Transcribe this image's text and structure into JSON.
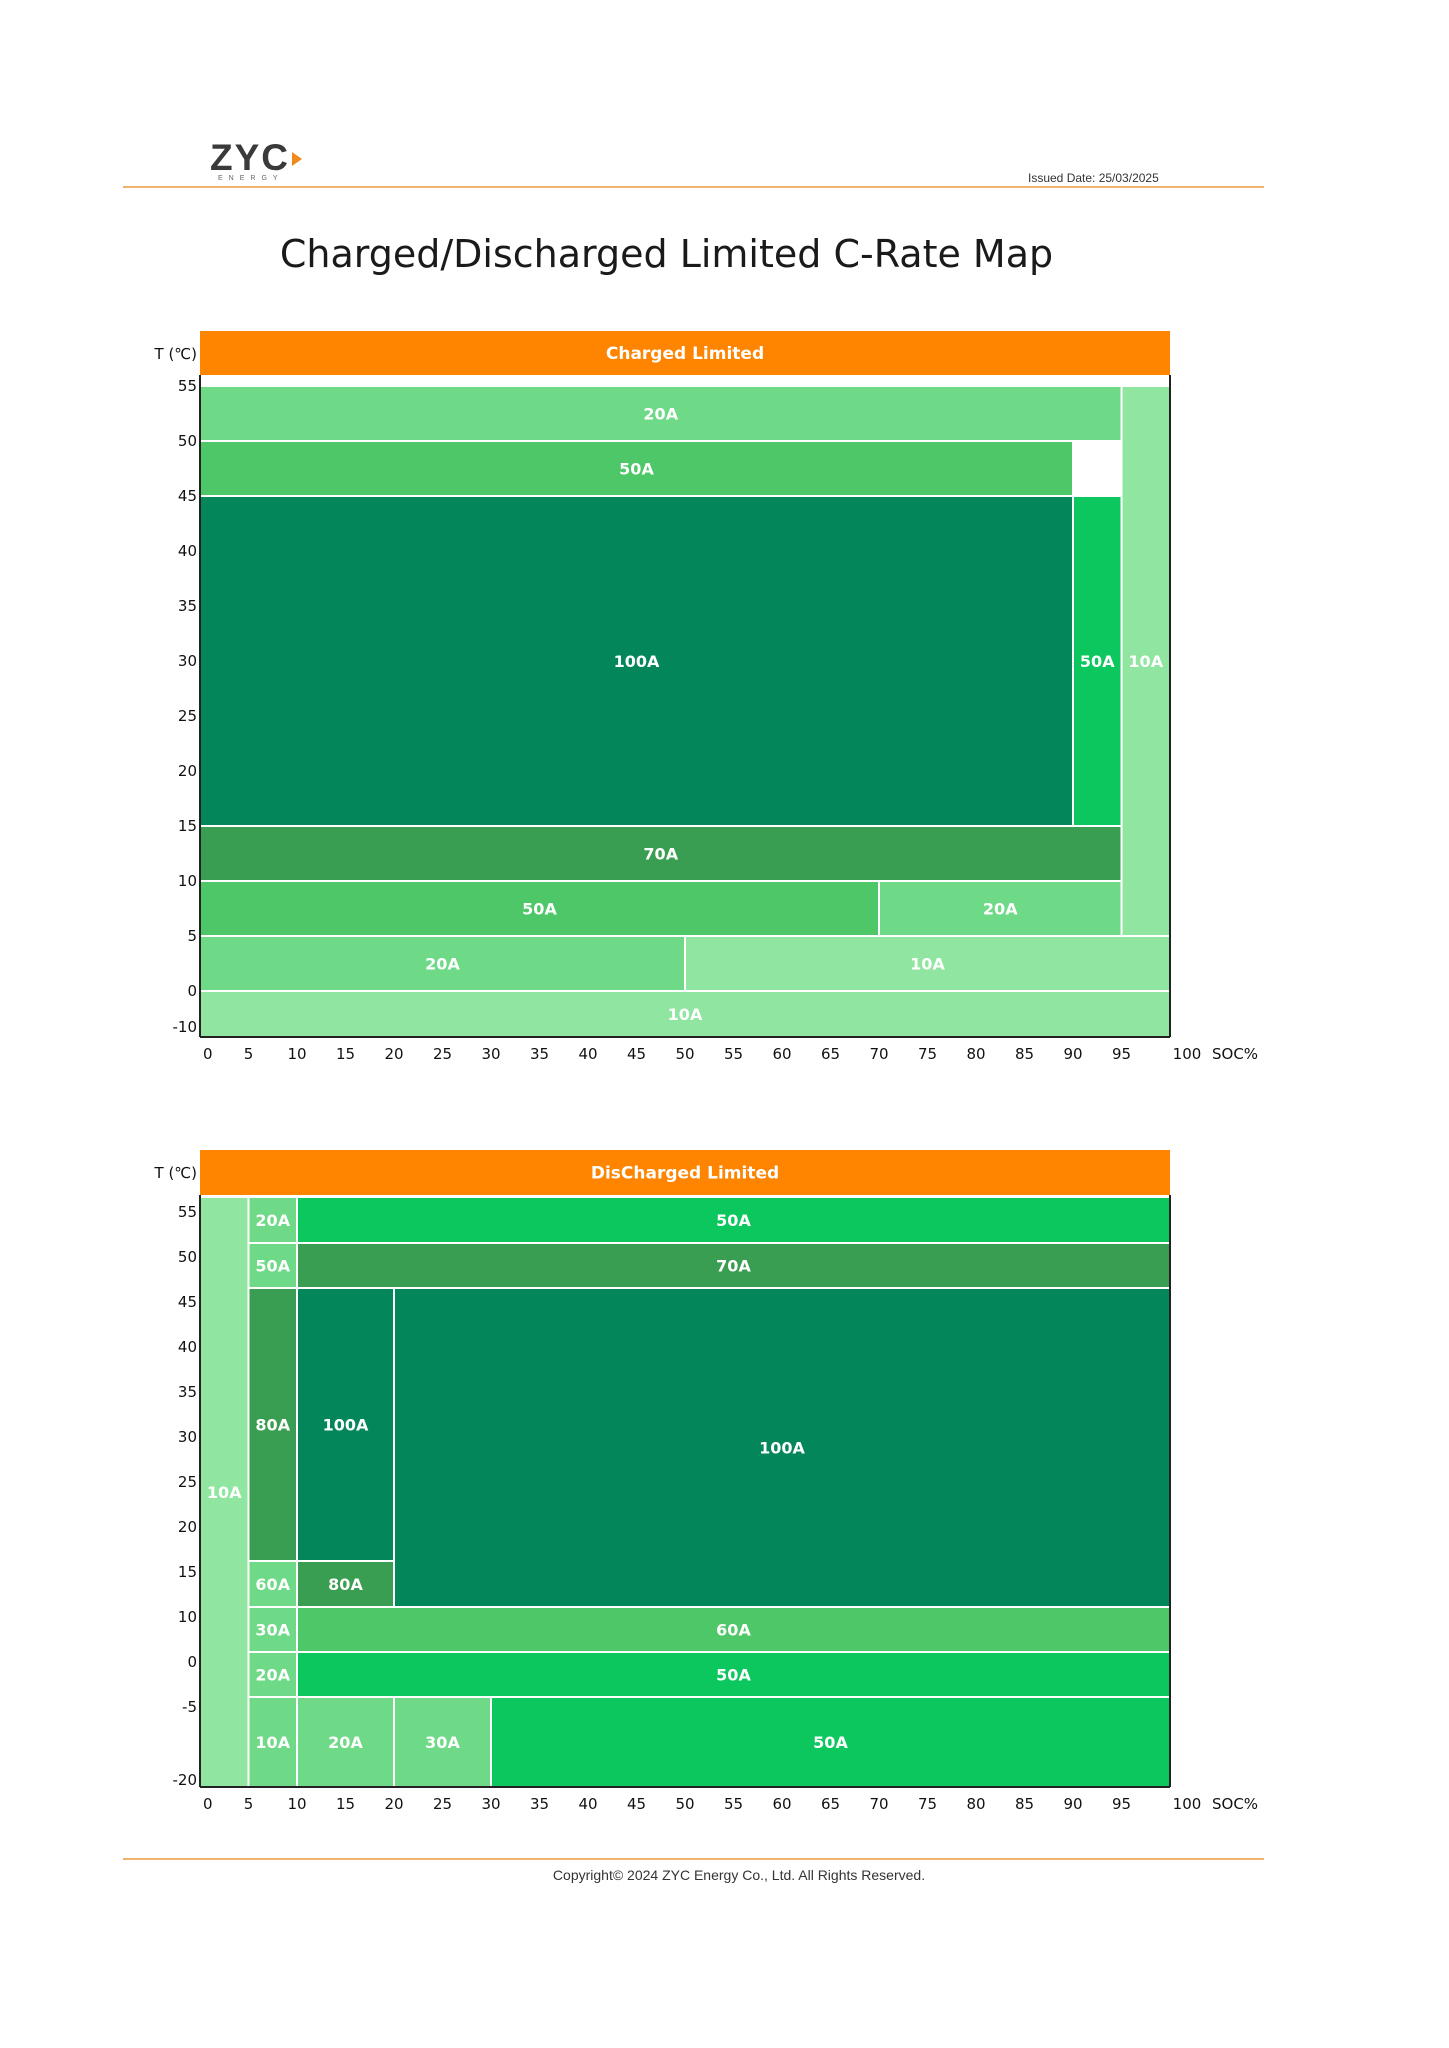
{
  "header": {
    "logo_text": "ZYC",
    "logo_subtext": "ENERGY",
    "issued_date": "Issued Date: 25/03/2025"
  },
  "title": "Charged/Discharged Limited C-Rate Map",
  "footer": "Copyright© 2024 ZYC Energy Co., Ltd. All Rights Reserved.",
  "colors": {
    "accent_orange": "#ff8400",
    "lightest": "#90e6a0",
    "light": "#6ed986",
    "mid_light": "#4dc767",
    "bright": "#0cc75e",
    "mid_dark": "#3a9e52",
    "darkest": "#03865a"
  },
  "chart_data": [
    {
      "type": "heatmap",
      "title": "Charged Limited",
      "ylabel": "T (℃)",
      "xlabel": "SOC%",
      "x_ticks": [
        "0",
        "5",
        "10",
        "15",
        "20",
        "25",
        "30",
        "35",
        "40",
        "45",
        "50",
        "55",
        "60",
        "65",
        "70",
        "75",
        "80",
        "85",
        "90",
        "95",
        "100"
      ],
      "y_ticks": [
        "55",
        "50",
        "45",
        "40",
        "35",
        "30",
        "25",
        "20",
        "15",
        "10",
        "5",
        "0",
        "-10"
      ],
      "xlim": [
        0,
        100
      ],
      "regions": [
        {
          "label": "20A",
          "soc": [
            0,
            95
          ],
          "temp": [
            "50",
            "55"
          ],
          "color": "light"
        },
        {
          "label": "50A",
          "soc": [
            0,
            90
          ],
          "temp": [
            "45",
            "50"
          ],
          "color": "mid_light"
        },
        {
          "label": "100A",
          "soc": [
            0,
            90
          ],
          "temp": [
            "15",
            "45"
          ],
          "color": "darkest"
        },
        {
          "label": "50A",
          "soc": [
            90,
            95
          ],
          "temp": [
            "15",
            "45"
          ],
          "color": "bright"
        },
        {
          "label": "10A",
          "soc": [
            95,
            100
          ],
          "temp": [
            "5",
            "55"
          ],
          "color": "lightest"
        },
        {
          "label": "70A",
          "soc": [
            0,
            95
          ],
          "temp": [
            "10",
            "15"
          ],
          "color": "mid_dark"
        },
        {
          "label": "50A",
          "soc": [
            0,
            70
          ],
          "temp": [
            "5",
            "10"
          ],
          "color": "mid_light"
        },
        {
          "label": "20A",
          "soc": [
            70,
            95
          ],
          "temp": [
            "5",
            "10"
          ],
          "color": "light"
        },
        {
          "label": "20A",
          "soc": [
            0,
            50
          ],
          "temp": [
            "0",
            "5"
          ],
          "color": "light"
        },
        {
          "label": "10A",
          "soc": [
            50,
            100
          ],
          "temp": [
            "0",
            "5"
          ],
          "color": "lightest"
        },
        {
          "label": "10A",
          "soc": [
            0,
            100
          ],
          "temp": [
            "-10",
            "0"
          ],
          "color": "lightest"
        }
      ]
    },
    {
      "type": "heatmap",
      "title": "DisCharged Limited",
      "ylabel": "T (℃)",
      "xlabel": "SOC%",
      "x_ticks": [
        "0",
        "5",
        "10",
        "15",
        "20",
        "25",
        "30",
        "35",
        "40",
        "45",
        "50",
        "55",
        "60",
        "65",
        "70",
        "75",
        "80",
        "85",
        "90",
        "95",
        "100"
      ],
      "y_ticks": [
        "55",
        "50",
        "45",
        "40",
        "35",
        "30",
        "25",
        "20",
        "15",
        "10",
        "0",
        "-5",
        "-20"
      ],
      "xlim": [
        0,
        100
      ],
      "regions": [
        {
          "label": "10A",
          "soc": [
            0,
            5
          ],
          "temp": [
            "-20",
            "55"
          ],
          "color": "lightest"
        },
        {
          "label": "20A",
          "soc": [
            5,
            10
          ],
          "temp": [
            "50",
            "55"
          ],
          "color": "light"
        },
        {
          "label": "50A",
          "soc": [
            10,
            100
          ],
          "temp": [
            "50",
            "55"
          ],
          "color": "bright"
        },
        {
          "label": "50A",
          "soc": [
            5,
            10
          ],
          "temp": [
            "45",
            "50"
          ],
          "color": "light"
        },
        {
          "label": "70A",
          "soc": [
            10,
            100
          ],
          "temp": [
            "45",
            "50"
          ],
          "color": "mid_dark"
        },
        {
          "label": "80A",
          "soc": [
            5,
            10
          ],
          "temp": [
            "15",
            "45"
          ],
          "color": "mid_dark"
        },
        {
          "label": "100A",
          "soc": [
            10,
            20
          ],
          "temp": [
            "15",
            "45"
          ],
          "color": "darkest"
        },
        {
          "label": "100A",
          "soc": [
            20,
            100
          ],
          "temp": [
            "10",
            "45"
          ],
          "color": "darkest"
        },
        {
          "label": "60A",
          "soc": [
            5,
            10
          ],
          "temp": [
            "10",
            "15"
          ],
          "color": "light"
        },
        {
          "label": "80A",
          "soc": [
            10,
            20
          ],
          "temp": [
            "10",
            "15"
          ],
          "color": "mid_dark"
        },
        {
          "label": "30A",
          "soc": [
            5,
            10
          ],
          "temp": [
            "0",
            "10"
          ],
          "color": "light"
        },
        {
          "label": "60A",
          "soc": [
            10,
            100
          ],
          "temp": [
            "0",
            "10"
          ],
          "color": "mid_light"
        },
        {
          "label": "20A",
          "soc": [
            5,
            10
          ],
          "temp": [
            "-5",
            "0"
          ],
          "color": "light"
        },
        {
          "label": "50A",
          "soc": [
            10,
            100
          ],
          "temp": [
            "-5",
            "0"
          ],
          "color": "bright"
        },
        {
          "label": "10A",
          "soc": [
            5,
            10
          ],
          "temp": [
            "-20",
            "-5"
          ],
          "color": "light"
        },
        {
          "label": "20A",
          "soc": [
            10,
            20
          ],
          "temp": [
            "-20",
            "-5"
          ],
          "color": "light"
        },
        {
          "label": "30A",
          "soc": [
            20,
            30
          ],
          "temp": [
            "-20",
            "-5"
          ],
          "color": "light"
        },
        {
          "label": "50A",
          "soc": [
            30,
            100
          ],
          "temp": [
            "-20",
            "-5"
          ],
          "color": "bright"
        }
      ]
    }
  ]
}
